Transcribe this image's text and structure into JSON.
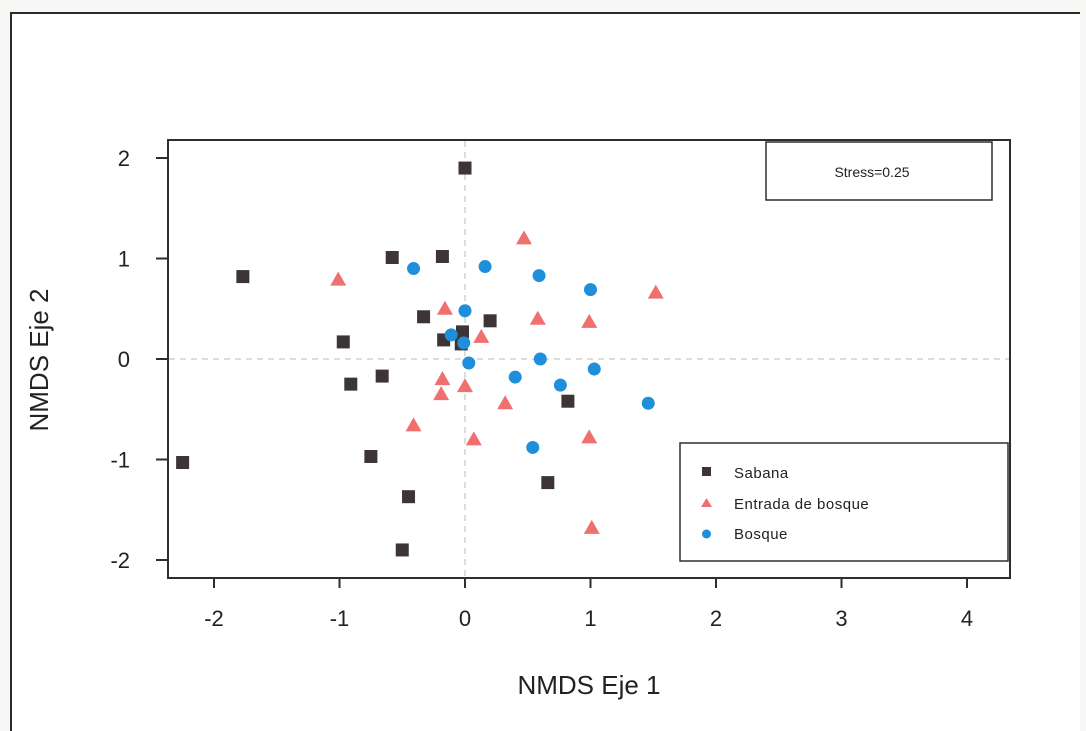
{
  "chart_data": {
    "type": "scatter",
    "title": "",
    "xlabel": "NMDS Eje 1",
    "ylabel": "NMDS Eje 2",
    "xlim": [
      -2.35,
      4.35
    ],
    "ylim": [
      -2.18,
      2.18
    ],
    "xticks": [
      -2,
      -1,
      0,
      1,
      2,
      3,
      4
    ],
    "yticks": [
      -2,
      -1,
      0,
      1,
      2
    ],
    "reference_lines": {
      "x": 0,
      "y": 0,
      "style": "dashed"
    },
    "annotation": "Stress=0.25",
    "legend_position": "bottom-right",
    "series": [
      {
        "name": "Sabana",
        "marker": "square",
        "color": "#3d3535",
        "points": [
          [
            0.0,
            1.9
          ],
          [
            -1.77,
            0.82
          ],
          [
            -0.58,
            1.01
          ],
          [
            -0.18,
            1.02
          ],
          [
            -0.33,
            0.42
          ],
          [
            0.2,
            0.38
          ],
          [
            -0.97,
            0.17
          ],
          [
            -0.17,
            0.19
          ],
          [
            -0.02,
            0.27
          ],
          [
            -0.03,
            0.15
          ],
          [
            -0.66,
            -0.17
          ],
          [
            -0.91,
            -0.25
          ],
          [
            0.82,
            -0.42
          ],
          [
            -2.25,
            -1.03
          ],
          [
            -0.75,
            -0.97
          ],
          [
            -0.45,
            -1.37
          ],
          [
            0.66,
            -1.23
          ],
          [
            -0.5,
            -1.9
          ]
        ]
      },
      {
        "name": "Entrada de bosque",
        "marker": "triangle",
        "color": "#f07070",
        "points": [
          [
            0.47,
            1.2
          ],
          [
            -1.01,
            0.79
          ],
          [
            1.52,
            0.66
          ],
          [
            -0.16,
            0.5
          ],
          [
            0.58,
            0.4
          ],
          [
            0.99,
            0.37
          ],
          [
            0.13,
            0.22
          ],
          [
            -0.18,
            -0.2
          ],
          [
            0.0,
            -0.27
          ],
          [
            -0.19,
            -0.35
          ],
          [
            0.32,
            -0.44
          ],
          [
            -0.41,
            -0.66
          ],
          [
            0.07,
            -0.8
          ],
          [
            0.99,
            -0.78
          ],
          [
            1.01,
            -1.68
          ]
        ]
      },
      {
        "name": "Bosque",
        "marker": "circle",
        "color": "#1f8fdc",
        "points": [
          [
            -0.41,
            0.9
          ],
          [
            0.16,
            0.92
          ],
          [
            0.59,
            0.83
          ],
          [
            1.0,
            0.69
          ],
          [
            0.0,
            0.48
          ],
          [
            -0.11,
            0.24
          ],
          [
            -0.01,
            0.16
          ],
          [
            0.03,
            -0.04
          ],
          [
            0.6,
            0.0
          ],
          [
            1.03,
            -0.1
          ],
          [
            0.4,
            -0.18
          ],
          [
            0.76,
            -0.26
          ],
          [
            1.46,
            -0.44
          ],
          [
            0.54,
            -0.88
          ]
        ]
      }
    ]
  }
}
